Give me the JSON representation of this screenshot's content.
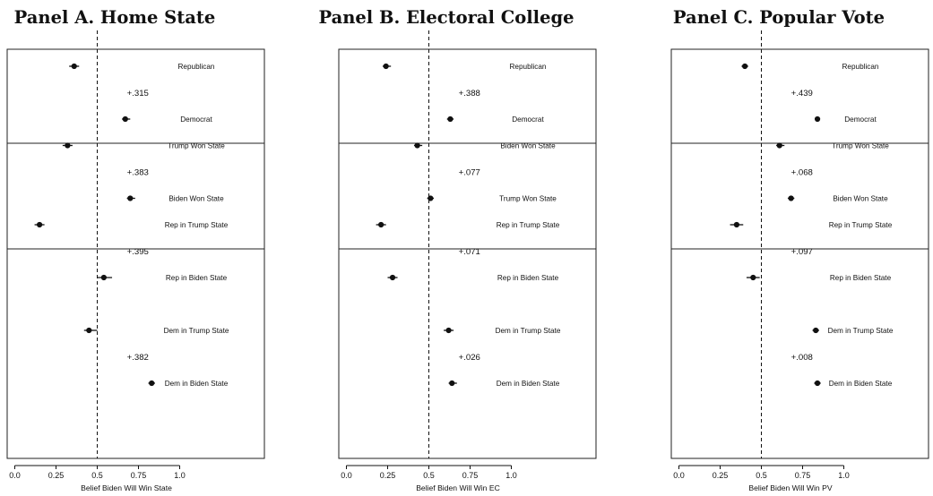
{
  "chart_data": [
    {
      "type": "scatter",
      "title": "Panel A. Home State",
      "xlabel": "Belief Biden Will Win State",
      "xlim": [
        0,
        1.0
      ],
      "xticks": [
        "0.0",
        "0.25",
        "0.5",
        "0.75",
        "1.0"
      ],
      "reference_line": 0.5,
      "groups": [
        {
          "rows": [
            {
              "label": "Republican",
              "value": 0.36,
              "ci": [
                0.33,
                0.39
              ]
            },
            {
              "diff": "+.315"
            },
            {
              "label": "Democrat",
              "value": 0.67,
              "ci": [
                0.65,
                0.7
              ]
            }
          ]
        },
        {
          "rows": [
            {
              "label": "Trump Won State",
              "value": 0.32,
              "ci": [
                0.29,
                0.35
              ]
            },
            {
              "diff": "+.383"
            },
            {
              "label": "Biden Won State",
              "value": 0.7,
              "ci": [
                0.68,
                0.73
              ]
            }
          ]
        },
        {
          "rows": [
            {
              "label": "Rep in Trump State",
              "value": 0.15,
              "ci": [
                0.12,
                0.18
              ]
            },
            {
              "diff": "+.395"
            },
            {
              "label": "Rep in Biden State",
              "value": 0.54,
              "ci": [
                0.5,
                0.59
              ]
            },
            {
              "gap": true
            },
            {
              "label": "Dem in Trump State",
              "value": 0.45,
              "ci": [
                0.42,
                0.5
              ]
            },
            {
              "diff": "+.382"
            },
            {
              "label": "Dem in Biden State",
              "value": 0.83,
              "ci": [
                0.81,
                0.85
              ]
            }
          ]
        }
      ]
    },
    {
      "type": "scatter",
      "title": "Panel B. Electoral College",
      "xlabel": "Belief Biden Will Win EC",
      "xlim": [
        0,
        1.0
      ],
      "xticks": [
        "0.0",
        "0.25",
        "0.5",
        "0.75",
        "1.0"
      ],
      "reference_line": 0.5,
      "groups": [
        {
          "rows": [
            {
              "label": "Republican",
              "value": 0.24,
              "ci": [
                0.22,
                0.27
              ]
            },
            {
              "diff": "+.388"
            },
            {
              "label": "Democrat",
              "value": 0.63,
              "ci": [
                0.61,
                0.65
              ]
            }
          ]
        },
        {
          "rows": [
            {
              "label": "Biden Won State",
              "value": 0.43,
              "ci": [
                0.41,
                0.46
              ]
            },
            {
              "diff": "+.077"
            },
            {
              "label": "Trump Won State",
              "value": 0.51,
              "ci": [
                0.49,
                0.53
              ]
            }
          ]
        },
        {
          "rows": [
            {
              "label": "Rep in Trump State",
              "value": 0.21,
              "ci": [
                0.18,
                0.24
              ]
            },
            {
              "diff": "+.071"
            },
            {
              "label": "Rep in Biden State",
              "value": 0.28,
              "ci": [
                0.25,
                0.31
              ]
            },
            {
              "gap": true
            },
            {
              "label": "Dem in Trump State",
              "value": 0.62,
              "ci": [
                0.59,
                0.65
              ]
            },
            {
              "diff": "+.026"
            },
            {
              "label": "Dem in Biden State",
              "value": 0.64,
              "ci": [
                0.62,
                0.67
              ]
            }
          ]
        }
      ]
    },
    {
      "type": "scatter",
      "title": "Panel C. Popular Vote",
      "xlabel": "Belief Biden Will Win PV",
      "xlim": [
        0,
        1.0
      ],
      "xticks": [
        "0.0",
        "0.25",
        "0.5",
        "0.75",
        "1.0"
      ],
      "reference_line": 0.5,
      "groups": [
        {
          "rows": [
            {
              "label": "Republican",
              "value": 0.4,
              "ci": [
                0.38,
                0.42
              ]
            },
            {
              "diff": "+.439"
            },
            {
              "label": "Democrat",
              "value": 0.84,
              "ci": [
                0.83,
                0.85
              ]
            }
          ]
        },
        {
          "rows": [
            {
              "label": "Trump Won State",
              "value": 0.61,
              "ci": [
                0.59,
                0.64
              ]
            },
            {
              "diff": "+.068"
            },
            {
              "label": "Biden Won State",
              "value": 0.68,
              "ci": [
                0.66,
                0.7
              ]
            }
          ]
        },
        {
          "rows": [
            {
              "label": "Rep in Trump State",
              "value": 0.35,
              "ci": [
                0.31,
                0.39
              ]
            },
            {
              "diff": "+.097"
            },
            {
              "label": "Rep in Biden State",
              "value": 0.45,
              "ci": [
                0.41,
                0.49
              ]
            },
            {
              "gap": true
            },
            {
              "label": "Dem in Trump State",
              "value": 0.83,
              "ci": [
                0.81,
                0.85
              ]
            },
            {
              "diff": "+.008"
            },
            {
              "label": "Dem in Biden State",
              "value": 0.84,
              "ci": [
                0.82,
                0.86
              ]
            }
          ]
        }
      ]
    }
  ]
}
